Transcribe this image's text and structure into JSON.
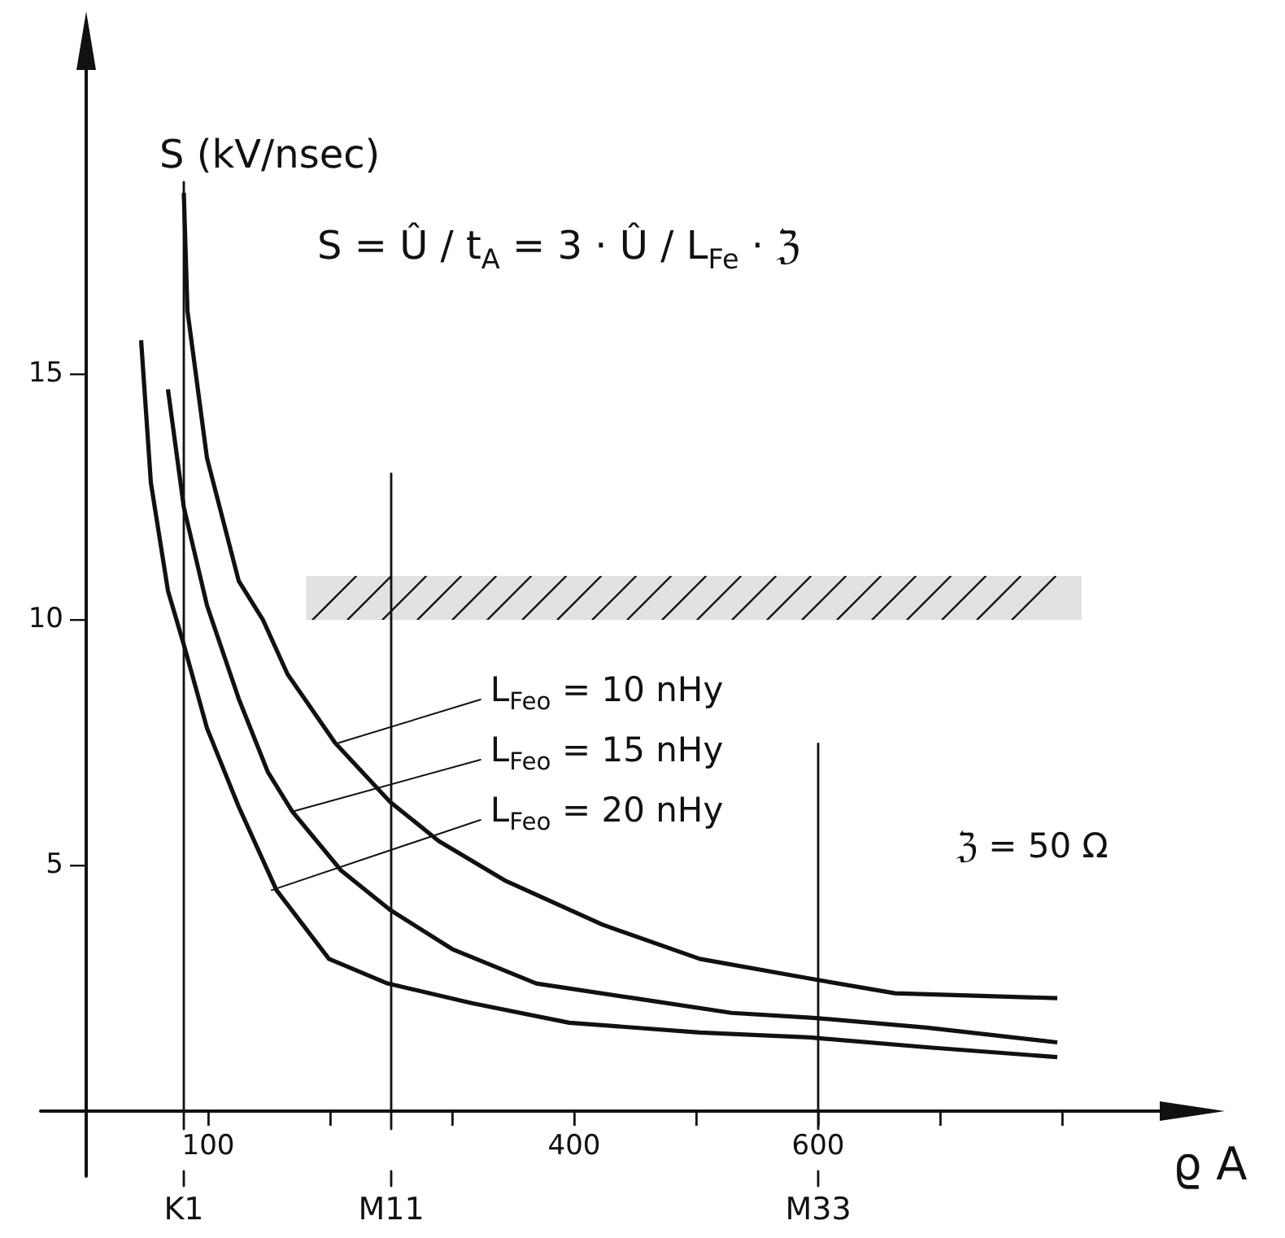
{
  "chart_data": {
    "type": "line",
    "ylabel": "S (kV/nsec)",
    "xlabel": "ϱ A",
    "xlim": [
      0,
      920
    ],
    "ylim": [
      0,
      22
    ],
    "xticks": [
      {
        "value": 0,
        "label": null
      },
      100,
      {
        "value": 200,
        "label": null
      },
      {
        "value": 300,
        "label": null
      },
      400,
      {
        "value": 500,
        "label": null
      },
      600,
      {
        "value": 700,
        "label": null
      },
      {
        "value": 800,
        "label": null
      }
    ],
    "yticks": [
      5,
      10,
      15
    ],
    "grid": false,
    "legend": false,
    "marker": "none",
    "line_style": "solid",
    "series": [
      {
        "color": "#111111",
        "x": [
          80,
          83,
          99,
          125,
          145,
          165,
          204,
          249,
          289,
          343,
          423,
          503,
          593,
          663,
          796
        ],
        "values": [
          18.7,
          16.3,
          13.3,
          10.8,
          10.0,
          8.9,
          7.5,
          6.3,
          5.5,
          4.7,
          3.8,
          3.1,
          2.7,
          2.4,
          2.3
        ]
      },
      {
        "color": "#111111",
        "x": [
          67,
          80,
          99,
          125,
          149,
          169,
          209,
          249,
          300,
          369,
          449,
          529,
          596,
          689,
          796
        ],
        "values": [
          14.7,
          12.3,
          10.3,
          8.4,
          6.9,
          6.1,
          4.9,
          4.1,
          3.3,
          2.6,
          2.3,
          2.0,
          1.9,
          1.7,
          1.4
        ]
      },
      {
        "color": "#111111",
        "x": [
          45,
          53,
          67,
          80,
          99,
          125,
          156,
          199,
          247,
          316,
          396,
          503,
          593,
          689,
          796
        ],
        "values": [
          15.7,
          12.8,
          10.6,
          9.5,
          7.8,
          6.2,
          4.5,
          3.1,
          2.6,
          2.2,
          1.8,
          1.6,
          1.5,
          1.3,
          1.1
        ]
      }
    ],
    "ref_lines": [
      {
        "axis": "x",
        "value": 80,
        "label": "K1"
      },
      {
        "axis": "x",
        "value": 250,
        "label": "M11"
      },
      {
        "axis": "x",
        "value": 600,
        "label": "M33"
      }
    ],
    "bands": [
      {
        "axis": "y",
        "from": 10,
        "to": 10.9,
        "color": "#111111"
      }
    ],
    "annotations": [
      "S = Û / t$_{A}$ = 3 · Û / L$_{Fe}$ · ℨ",
      {
        "text": "L$_{Feo}$ = 10 nHy",
        "x": 207,
        "y": 7.5
      },
      {
        "text": "L$_{Feo}$ = 15 nHy",
        "x": 169,
        "y": 6.1
      },
      {
        "text": "L$_{Feo}$ = 20 nHy",
        "x": 152,
        "y": 4.5
      },
      "ℨ = 50 Ω"
    ]
  }
}
